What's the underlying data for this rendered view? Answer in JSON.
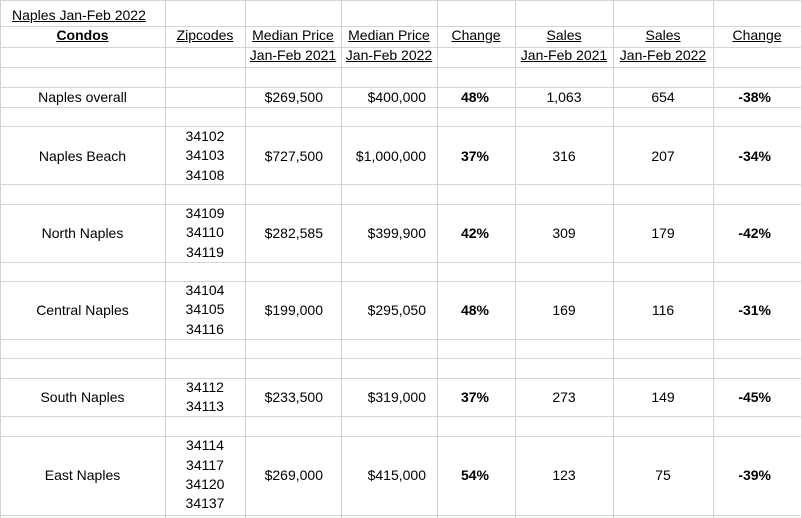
{
  "title": "Naples Jan-Feb  2022",
  "headers": {
    "category": "Condos",
    "zipcodes": "Zipcodes",
    "median_price_1": "Median Price",
    "median_price_1_sub": "Jan-Feb  2021",
    "median_price_2": "Median Price",
    "median_price_2_sub": "Jan-Feb  2022",
    "price_change": "Change",
    "sales_1": "Sales",
    "sales_1_sub": "Jan-Feb  2021",
    "sales_2": "Sales",
    "sales_2_sub": "Jan-Feb  2022",
    "sales_change": "Change"
  },
  "rows": [
    {
      "area": "Naples overall",
      "zipcodes": [],
      "median_2021": "$269,500",
      "median_2022": "$400,000",
      "price_change": "48%",
      "sales_2021": "1,063",
      "sales_2022": "654",
      "sales_change": "-38%"
    },
    {
      "area": "Naples Beach",
      "zipcodes": [
        "34102",
        "34103",
        "34108"
      ],
      "median_2021": "$727,500",
      "median_2022": "$1,000,000",
      "price_change": "37%",
      "sales_2021": "316",
      "sales_2022": "207",
      "sales_change": "-34%"
    },
    {
      "area": "North Naples",
      "zipcodes": [
        "34109",
        "34110",
        "34119"
      ],
      "median_2021": "$282,585",
      "median_2022": "$399,900",
      "price_change": "42%",
      "sales_2021": "309",
      "sales_2022": "179",
      "sales_change": "-42%"
    },
    {
      "area": "Central Naples",
      "zipcodes": [
        "34104",
        "34105",
        "34116"
      ],
      "median_2021": "$199,000",
      "median_2022": "$295,050",
      "price_change": "48%",
      "sales_2021": "169",
      "sales_2022": "116",
      "sales_change": "-31%"
    },
    {
      "area": "South Naples",
      "zipcodes": [
        "34112",
        "34113"
      ],
      "median_2021": "$233,500",
      "median_2022": "$319,000",
      "price_change": "37%",
      "sales_2021": "273",
      "sales_2022": "149",
      "sales_change": "-45%"
    },
    {
      "area": "East Naples",
      "zipcodes": [
        "34114",
        "34117",
        "34120",
        "34137"
      ],
      "median_2021": "$269,000",
      "median_2022": "$415,000",
      "price_change": "54%",
      "sales_2021": "123",
      "sales_2022": "75",
      "sales_change": "-39%"
    }
  ]
}
